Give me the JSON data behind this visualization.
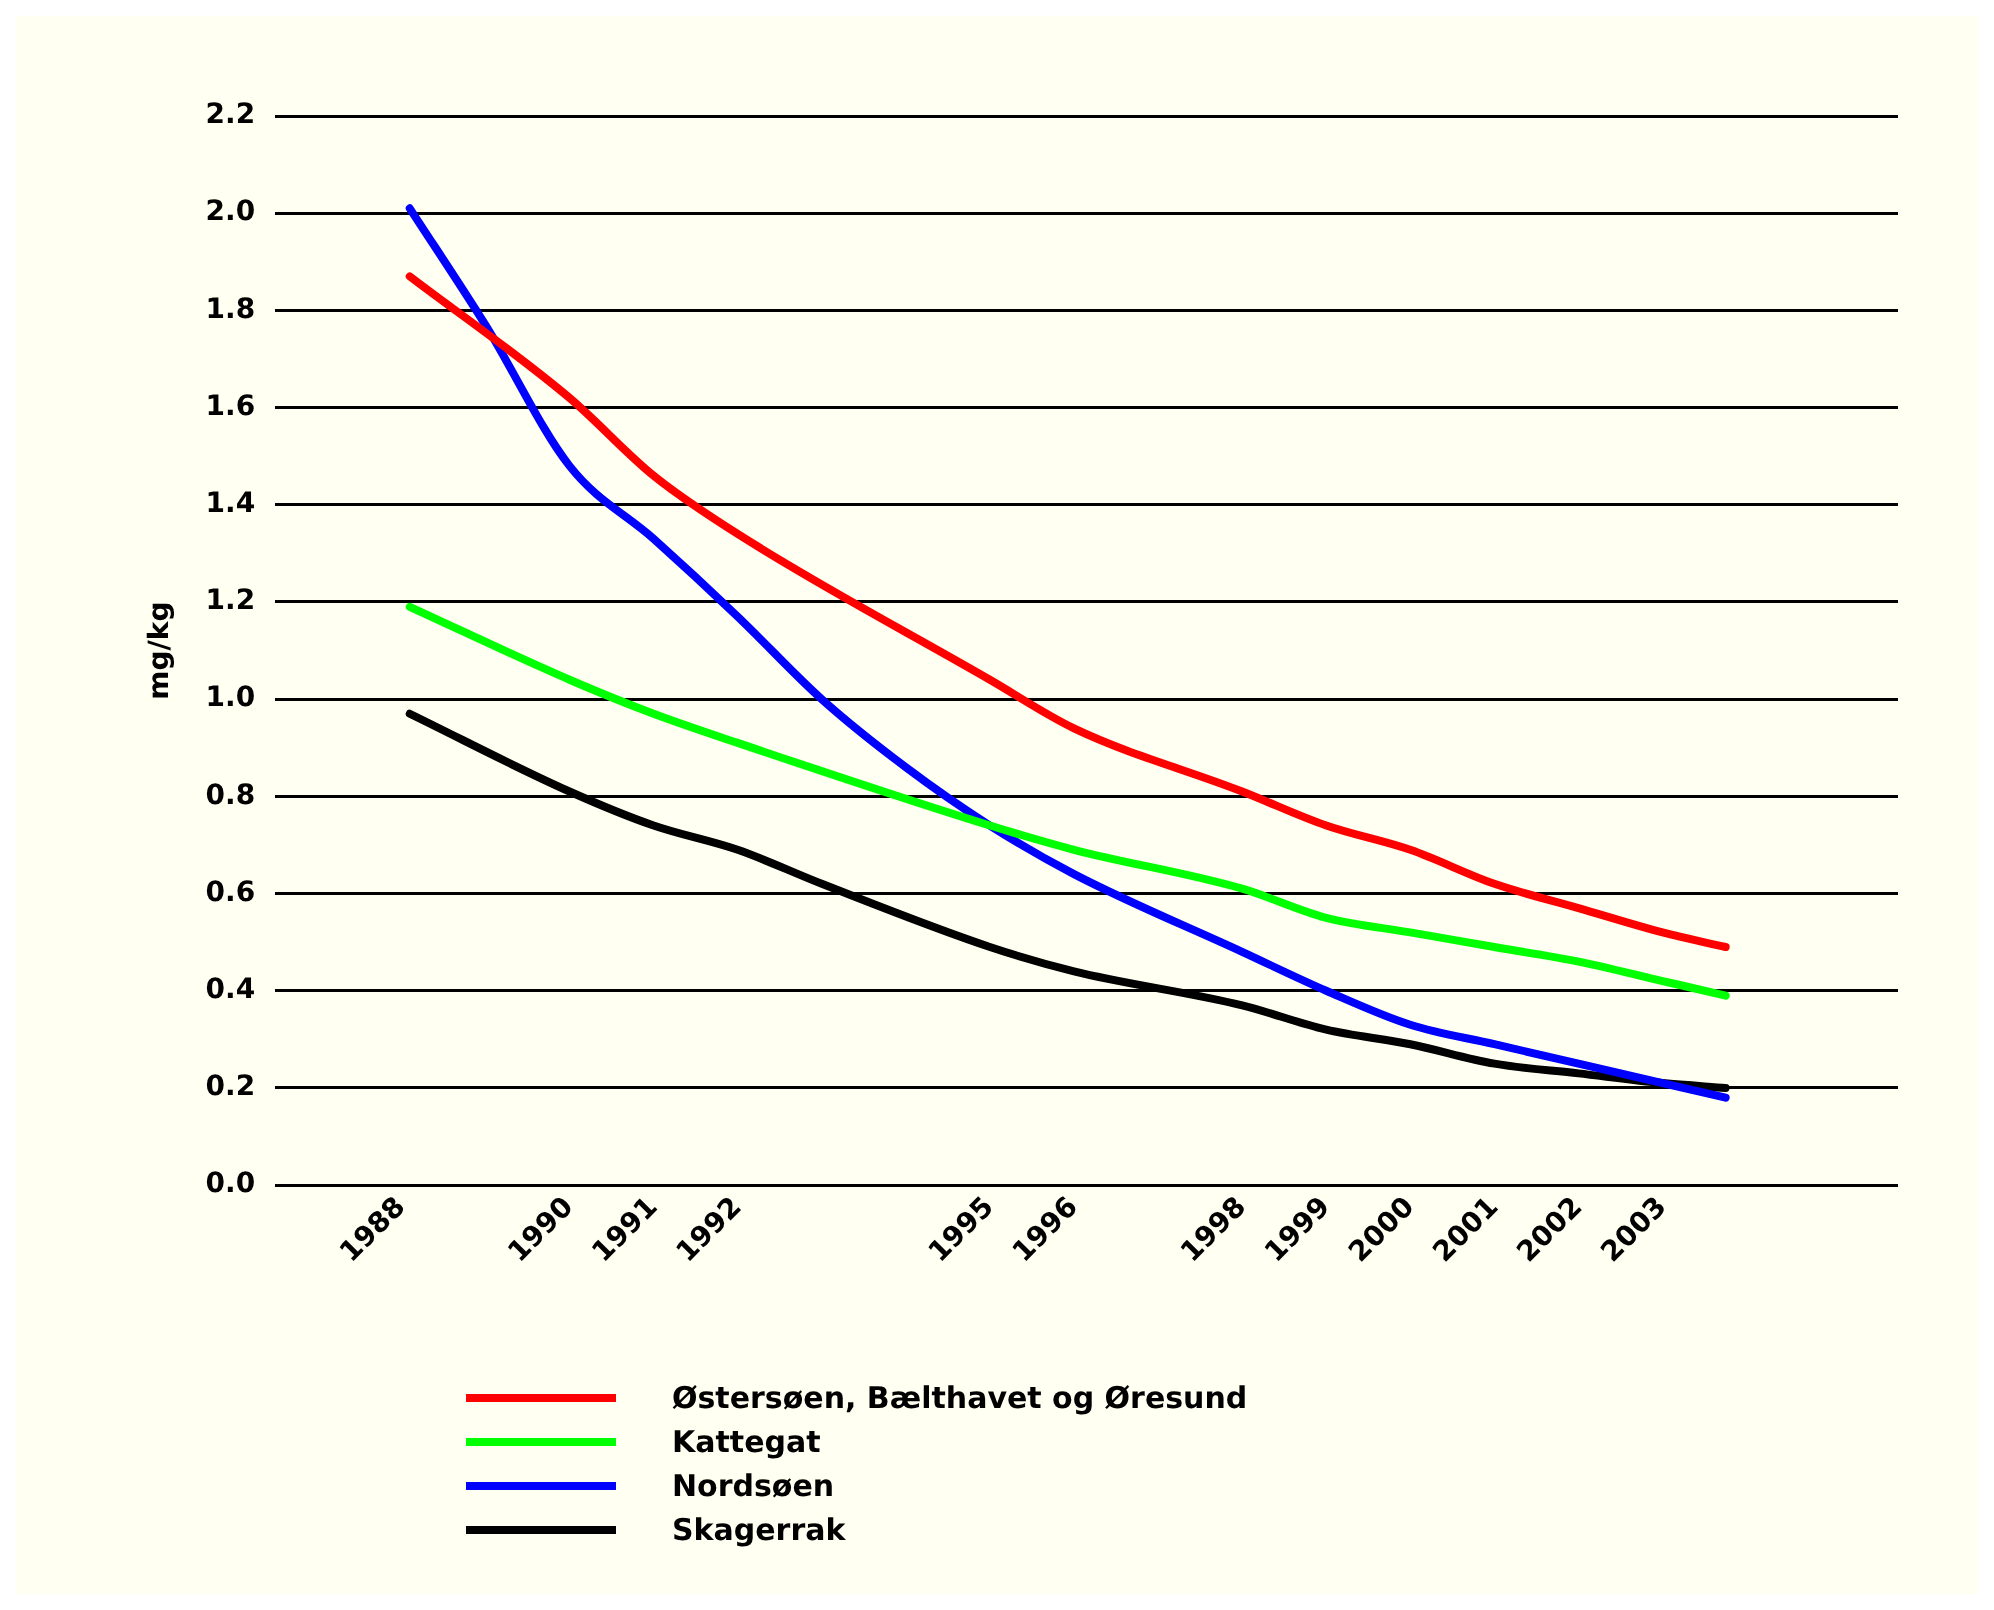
{
  "chart_data": {
    "type": "line",
    "ylabel": "mg/kg",
    "xlim": [
      1986.5,
      2005.8
    ],
    "xticks": [
      1988,
      1990,
      1991,
      1992,
      1995,
      1996,
      1998,
      1999,
      2000,
      2001,
      2002,
      2003
    ],
    "ylim": [
      0,
      2.2
    ],
    "yticks": [
      {
        "value": 0,
        "label": "0.0"
      },
      {
        "value": 0.2,
        "label": "0.2"
      },
      {
        "value": 0.4,
        "label": "0.4"
      },
      {
        "value": 0.6,
        "label": "0.6"
      },
      {
        "value": 0.8,
        "label": "0.8"
      },
      {
        "value": 1,
        "label": "1.0"
      },
      {
        "value": 1.2,
        "label": "1.2"
      },
      {
        "value": 1.4,
        "label": "1.4"
      },
      {
        "value": 1.6,
        "label": "1.6"
      },
      {
        "value": 1.8,
        "label": "1.8"
      },
      {
        "value": 2,
        "label": "2.0"
      },
      {
        "value": 2.2,
        "label": "2.2"
      }
    ],
    "grid": "y",
    "legend": "bottom",
    "marker": "none",
    "series": [
      {
        "name": "Østersøen, Bælthavet og Øresund",
        "color": "#ff0000",
        "x": [
          1988.1,
          1990,
          1991,
          1992,
          1995,
          1996,
          1998,
          1999,
          2000,
          2001,
          2002,
          2003,
          2003.75
        ],
        "values": [
          1.87,
          1.62,
          1.46,
          1.34,
          1.04,
          0.94,
          0.81,
          0.74,
          0.69,
          0.62,
          0.57,
          0.52,
          0.49
        ]
      },
      {
        "name": "Kattegat",
        "color": "#00ff00",
        "x": [
          1988.1,
          1990,
          1991,
          1992,
          1995,
          1996,
          1998,
          1999,
          2000,
          2001,
          2002,
          2003,
          2003.75
        ],
        "values": [
          1.19,
          1.04,
          0.97,
          0.91,
          0.74,
          0.69,
          0.61,
          0.55,
          0.52,
          0.49,
          0.46,
          0.42,
          0.39
        ]
      },
      {
        "name": "Nordsøen",
        "color": "#0000ff",
        "x": [
          1988.1,
          1989,
          1990,
          1991,
          1992,
          1993,
          1994,
          1995,
          1996,
          1998,
          1999,
          2000,
          2001,
          2002,
          2003,
          2003.75
        ],
        "values": [
          2.01,
          1.77,
          1.48,
          1.33,
          1.17,
          1.0,
          0.86,
          0.74,
          0.64,
          0.48,
          0.4,
          0.33,
          0.29,
          0.25,
          0.21,
          0.18
        ]
      },
      {
        "name": "Skagerrak",
        "color": "#000000",
        "x": [
          1988.1,
          1990,
          1991,
          1992,
          1993,
          1995,
          1996,
          1998,
          1999,
          2000,
          2001,
          2002,
          2003,
          2003.75
        ],
        "values": [
          0.97,
          0.81,
          0.74,
          0.69,
          0.62,
          0.49,
          0.44,
          0.37,
          0.32,
          0.29,
          0.25,
          0.23,
          0.21,
          0.2
        ]
      }
    ]
  }
}
